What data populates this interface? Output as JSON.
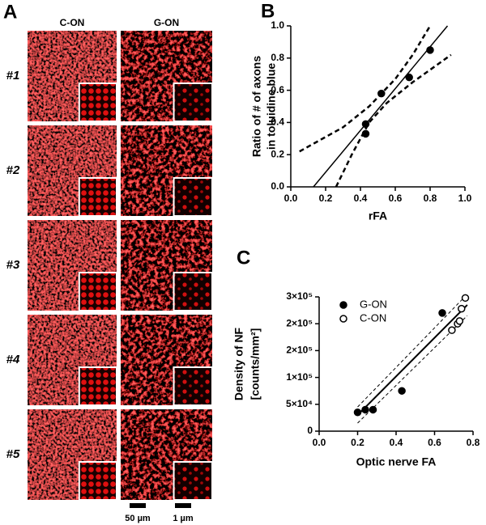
{
  "panel_a": {
    "label": "A",
    "columns": [
      "C-ON",
      "G-ON"
    ],
    "rows": [
      "#1",
      "#2",
      "#3",
      "#4",
      "#5"
    ],
    "scale_bars": [
      "50 µm",
      "1 µm"
    ]
  },
  "chart_data": [
    {
      "type": "scatter",
      "panel": "B",
      "xlabel": "rFA",
      "ylabel": [
        "Ratio of # of axons",
        "in toluidine blue"
      ],
      "x": [
        0.43,
        0.43,
        0.52,
        0.68,
        0.8
      ],
      "values": [
        0.33,
        0.39,
        0.58,
        0.68,
        0.85
      ],
      "color": "#000000",
      "xlim": [
        0,
        1
      ],
      "ylim": [
        0,
        1
      ],
      "xticks": [
        {
          "value": 0,
          "label": "0.0"
        },
        {
          "value": 0.2,
          "label": "0.2"
        },
        {
          "value": 0.4,
          "label": "0.4"
        },
        {
          "value": 0.6,
          "label": "0.6"
        },
        {
          "value": 0.8,
          "label": "0.8"
        },
        {
          "value": 1,
          "label": "1.0"
        }
      ],
      "yticks": [
        {
          "value": 0,
          "label": "0.0"
        },
        {
          "value": 0.2,
          "label": "0.2"
        },
        {
          "value": 0.4,
          "label": "0.4"
        },
        {
          "value": 0.6,
          "label": "0.6"
        },
        {
          "value": 0.8,
          "label": "0.8"
        },
        {
          "value": 1,
          "label": "1.0"
        }
      ],
      "fit": {
        "x": [
          0.13,
          0.9
        ],
        "values": [
          0,
          1
        ]
      },
      "bands": [
        {
          "x": [
            0.05,
            0.3,
            0.45,
            0.6,
            0.7,
            0.8
          ],
          "values": [
            0.22,
            0.37,
            0.5,
            0.67,
            0.82,
            1
          ]
        },
        {
          "x": [
            0.26,
            0.35,
            0.45,
            0.55,
            0.7,
            0.92
          ],
          "values": [
            0,
            0.2,
            0.4,
            0.52,
            0.65,
            0.82
          ]
        }
      ]
    },
    {
      "type": "scatter",
      "panel": "C",
      "xlabel": "Optic nerve FA",
      "ylabel": [
        "Density of NF",
        "[counts/mm²]"
      ],
      "series": [
        {
          "name": "G-ON",
          "color": "#000000",
          "filled": true,
          "x": [
            0.2,
            0.24,
            0.28,
            0.43,
            0.64
          ],
          "values": [
            35000,
            40000,
            40000,
            75000,
            220000
          ]
        },
        {
          "name": "C-ON",
          "color": "#000000",
          "filled": false,
          "x": [
            0.69,
            0.72,
            0.73,
            0.74,
            0.76
          ],
          "values": [
            188000,
            200000,
            205000,
            228000,
            248000
          ]
        }
      ],
      "xlim": [
        0,
        0.8
      ],
      "ylim": [
        0,
        250000
      ],
      "xticks": [
        {
          "value": 0,
          "label": "0.0"
        },
        {
          "value": 0.2,
          "label": "0.2"
        },
        {
          "value": 0.4,
          "label": "0.4"
        },
        {
          "value": 0.6,
          "label": "0.6"
        },
        {
          "value": 0.8,
          "label": "0.8"
        }
      ],
      "yticks": [
        0,
        {
          "value": 50000,
          "label": "5×10⁴"
        },
        {
          "value": 100000,
          "label": "1×10⁵"
        },
        {
          "value": 150000,
          "label": "2×10⁵"
        },
        {
          "value": 200000,
          "label": "2×10⁵"
        },
        {
          "value": 250000,
          "label": "3×10⁵"
        }
      ],
      "fit": {
        "x": [
          0.2,
          0.77
        ],
        "values": [
          30000,
          235000
        ]
      },
      "bands": [
        {
          "x": [
            0.2,
            0.77
          ],
          "values": [
            45000,
            255000
          ]
        },
        {
          "x": [
            0.2,
            0.77
          ],
          "values": [
            15000,
            215000
          ]
        }
      ]
    }
  ]
}
